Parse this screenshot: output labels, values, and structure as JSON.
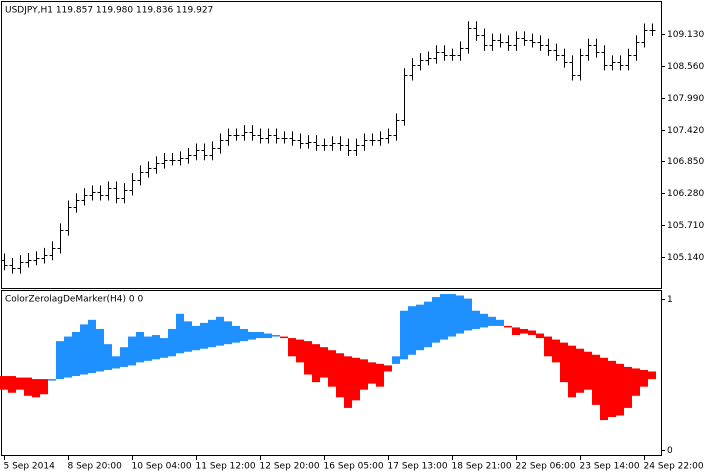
{
  "chart_data": [
    {
      "type": "ohlc",
      "title": "USDJPY,H1  119.857 119.980 119.836 119.927",
      "color": "#000000",
      "categories": [
        "5 Sep 2014",
        null,
        null,
        null,
        null,
        null,
        null,
        null,
        "8 Sep 20:00",
        null,
        null,
        null,
        null,
        null,
        null,
        null,
        "10 Sep 04:00",
        null,
        null,
        null,
        null,
        null,
        null,
        null,
        "11 Sep 12:00",
        null,
        null,
        null,
        null,
        null,
        null,
        null,
        "12 Sep 20:00",
        null,
        null,
        null,
        null,
        null,
        null,
        null,
        "16 Sep 05:00",
        null,
        null,
        null,
        null,
        null,
        null,
        null,
        "17 Sep 13:00",
        null,
        null,
        null,
        null,
        null,
        null,
        null,
        "18 Sep 21:00",
        null,
        null,
        null,
        null,
        null,
        null,
        null,
        "22 Sep 06:00",
        null,
        null,
        null,
        null,
        null,
        null,
        null,
        "23 Sep 14:00",
        null,
        null,
        null,
        null,
        null,
        null,
        null,
        "24 Sep 22:00",
        null
      ],
      "open": [
        105.08,
        105.0,
        104.94,
        105.05,
        105.09,
        105.12,
        105.18,
        105.3,
        105.62,
        106.03,
        106.16,
        106.25,
        106.3,
        106.25,
        106.37,
        106.2,
        106.34,
        106.52,
        106.66,
        106.73,
        106.82,
        106.88,
        106.88,
        106.91,
        106.97,
        107.05,
        106.97,
        107.09,
        107.23,
        107.32,
        107.32,
        107.38,
        107.32,
        107.27,
        107.32,
        107.27,
        107.27,
        107.23,
        107.18,
        107.2,
        107.14,
        107.14,
        107.18,
        107.14,
        107.05,
        107.14,
        107.23,
        107.23,
        107.27,
        107.32,
        107.59,
        108.4,
        108.58,
        108.67,
        108.7,
        108.81,
        108.75,
        108.75,
        108.88,
        109.24,
        109.11,
        108.93,
        109.02,
        108.99,
        108.93,
        109.06,
        109.02,
        108.99,
        108.93,
        108.84,
        108.75,
        108.63,
        108.4,
        108.75,
        108.93,
        108.81,
        108.58,
        108.63,
        108.58,
        108.75,
        108.99,
        109.2
      ],
      "high": [
        105.2,
        105.12,
        105.17,
        105.21,
        105.24,
        105.3,
        105.42,
        105.74,
        106.15,
        106.28,
        106.37,
        106.42,
        106.42,
        106.49,
        106.49,
        106.46,
        106.64,
        106.78,
        106.85,
        106.94,
        107.0,
        107.0,
        107.03,
        107.09,
        107.17,
        107.17,
        107.21,
        107.35,
        107.44,
        107.44,
        107.5,
        107.5,
        107.44,
        107.44,
        107.44,
        107.39,
        107.39,
        107.35,
        107.32,
        107.32,
        107.26,
        107.3,
        107.3,
        107.26,
        107.26,
        107.35,
        107.35,
        107.39,
        107.44,
        107.71,
        108.52,
        108.7,
        108.79,
        108.82,
        108.93,
        108.93,
        108.87,
        109.0,
        109.36,
        109.36,
        109.23,
        109.14,
        109.14,
        109.11,
        109.18,
        109.18,
        109.14,
        109.11,
        109.05,
        108.96,
        108.87,
        108.75,
        108.87,
        109.05,
        109.05,
        108.93,
        108.75,
        108.75,
        108.87,
        109.11,
        109.32,
        109.32
      ],
      "low": [
        104.9,
        104.84,
        104.84,
        104.95,
        104.99,
        105.02,
        105.08,
        105.2,
        105.52,
        105.93,
        106.06,
        106.15,
        106.15,
        106.15,
        106.1,
        106.1,
        106.24,
        106.42,
        106.56,
        106.63,
        106.72,
        106.78,
        106.78,
        106.81,
        106.87,
        106.87,
        106.87,
        106.99,
        107.13,
        107.22,
        107.22,
        107.22,
        107.17,
        107.17,
        107.17,
        107.17,
        107.13,
        107.08,
        107.08,
        107.04,
        107.04,
        107.04,
        107.04,
        106.95,
        106.95,
        107.04,
        107.13,
        107.13,
        107.17,
        107.22,
        107.49,
        108.3,
        108.48,
        108.57,
        108.6,
        108.65,
        108.65,
        108.65,
        108.78,
        109.01,
        108.83,
        108.83,
        108.89,
        108.83,
        108.83,
        108.92,
        108.89,
        108.83,
        108.74,
        108.65,
        108.53,
        108.3,
        108.3,
        108.65,
        108.71,
        108.48,
        108.48,
        108.48,
        108.48,
        108.65,
        108.89,
        109.1
      ],
      "close": [
        105.0,
        104.94,
        105.05,
        105.09,
        105.12,
        105.18,
        105.3,
        105.62,
        106.03,
        106.16,
        106.25,
        106.3,
        106.25,
        106.37,
        106.2,
        106.34,
        106.52,
        106.66,
        106.73,
        106.82,
        106.88,
        106.88,
        106.91,
        106.97,
        107.05,
        106.97,
        107.09,
        107.23,
        107.32,
        107.32,
        107.38,
        107.32,
        107.27,
        107.32,
        107.27,
        107.27,
        107.23,
        107.18,
        107.2,
        107.14,
        107.14,
        107.18,
        107.14,
        107.05,
        107.14,
        107.23,
        107.23,
        107.27,
        107.32,
        107.59,
        108.4,
        108.58,
        108.67,
        108.7,
        108.81,
        108.75,
        108.75,
        108.88,
        109.24,
        109.11,
        108.93,
        109.02,
        108.99,
        108.93,
        109.06,
        109.02,
        108.99,
        108.93,
        108.84,
        108.75,
        108.63,
        108.4,
        108.75,
        108.93,
        108.81,
        108.58,
        108.63,
        108.58,
        108.75,
        108.99,
        109.2,
        109.2
      ],
      "ylim": [
        104.6,
        109.67
      ],
      "yticks": [
        {
          "value": 105.14,
          "label": "105.140"
        },
        {
          "value": 105.71,
          "label": "105.710"
        },
        {
          "value": 106.28,
          "label": "106.280"
        },
        {
          "value": 106.85,
          "label": "106.850"
        },
        {
          "value": 107.42,
          "label": "107.420"
        },
        {
          "value": 107.99,
          "label": "107.990"
        },
        {
          "value": 108.56,
          "label": "108.560"
        },
        {
          "value": 109.13,
          "label": "109.130"
        }
      ]
    },
    {
      "type": "band",
      "title": "ColorZerolagDeMarker(H4) 0 0",
      "colors": {
        "above": "#1e90ff",
        "below": "#ff0000"
      },
      "series": [
        {
          "values": [
            0.4,
            0.38,
            0.4,
            0.36,
            0.35,
            0.37,
            0.47,
            0.72,
            0.75,
            0.78,
            0.83,
            0.86,
            0.8,
            0.7,
            0.62,
            0.68,
            0.75,
            0.78,
            0.75,
            0.76,
            0.74,
            0.8,
            0.9,
            0.85,
            0.82,
            0.84,
            0.86,
            0.88,
            0.85,
            0.82,
            0.8,
            0.78,
            0.78,
            0.77,
            0.76,
            0.74,
            0.62,
            0.58,
            0.5,
            0.45,
            0.48,
            0.42,
            0.35,
            0.28,
            0.33,
            0.4,
            0.44,
            0.42,
            0.52,
            0.62,
            0.92,
            0.95,
            0.96,
            0.98,
            1.01,
            1.03,
            1.03,
            1.02,
            1.0,
            0.92,
            0.9,
            0.88,
            0.86,
            0.81,
            0.76,
            0.77,
            0.76,
            0.74,
            0.62,
            0.58,
            0.45,
            0.35,
            0.38,
            0.4,
            0.3,
            0.2,
            0.22,
            0.23,
            0.28,
            0.36,
            0.42,
            0.47
          ]
        },
        {
          "values": [
            0.49,
            0.49,
            0.48,
            0.48,
            0.47,
            0.47,
            0.46,
            0.47,
            0.48,
            0.49,
            0.5,
            0.51,
            0.52,
            0.53,
            0.54,
            0.55,
            0.56,
            0.58,
            0.59,
            0.6,
            0.61,
            0.62,
            0.64,
            0.65,
            0.66,
            0.67,
            0.68,
            0.69,
            0.7,
            0.71,
            0.72,
            0.73,
            0.74,
            0.74,
            0.75,
            0.75,
            0.74,
            0.73,
            0.72,
            0.7,
            0.68,
            0.66,
            0.64,
            0.62,
            0.61,
            0.6,
            0.58,
            0.57,
            0.56,
            0.57,
            0.6,
            0.63,
            0.66,
            0.68,
            0.71,
            0.73,
            0.75,
            0.77,
            0.79,
            0.8,
            0.81,
            0.82,
            0.82,
            0.82,
            0.81,
            0.8,
            0.79,
            0.77,
            0.75,
            0.73,
            0.71,
            0.69,
            0.67,
            0.65,
            0.63,
            0.61,
            0.59,
            0.57,
            0.55,
            0.54,
            0.53,
            0.52
          ]
        }
      ],
      "ylim": [
        -0.03,
        1.05
      ],
      "yticks": [
        0,
        1
      ]
    }
  ]
}
